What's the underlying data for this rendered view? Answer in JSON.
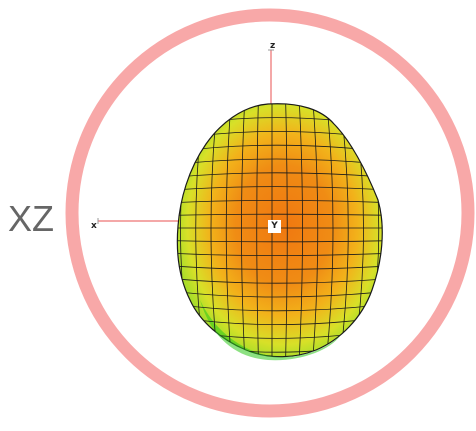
{
  "view_label": "XZ",
  "axes": {
    "x": "x",
    "y": "Y",
    "z": "z"
  },
  "colors": {
    "ring": "#f8a8a8",
    "surface_core": "#f07c10",
    "surface_mid": "#f2b41a",
    "surface_edge": "#a8e030",
    "surface_rim": "#2fc81c",
    "mesh": "#1a1a1a",
    "axis_line": "#e85050"
  },
  "icons": {
    "ring": "view-ring",
    "surface": "3d-radiation-surface"
  }
}
